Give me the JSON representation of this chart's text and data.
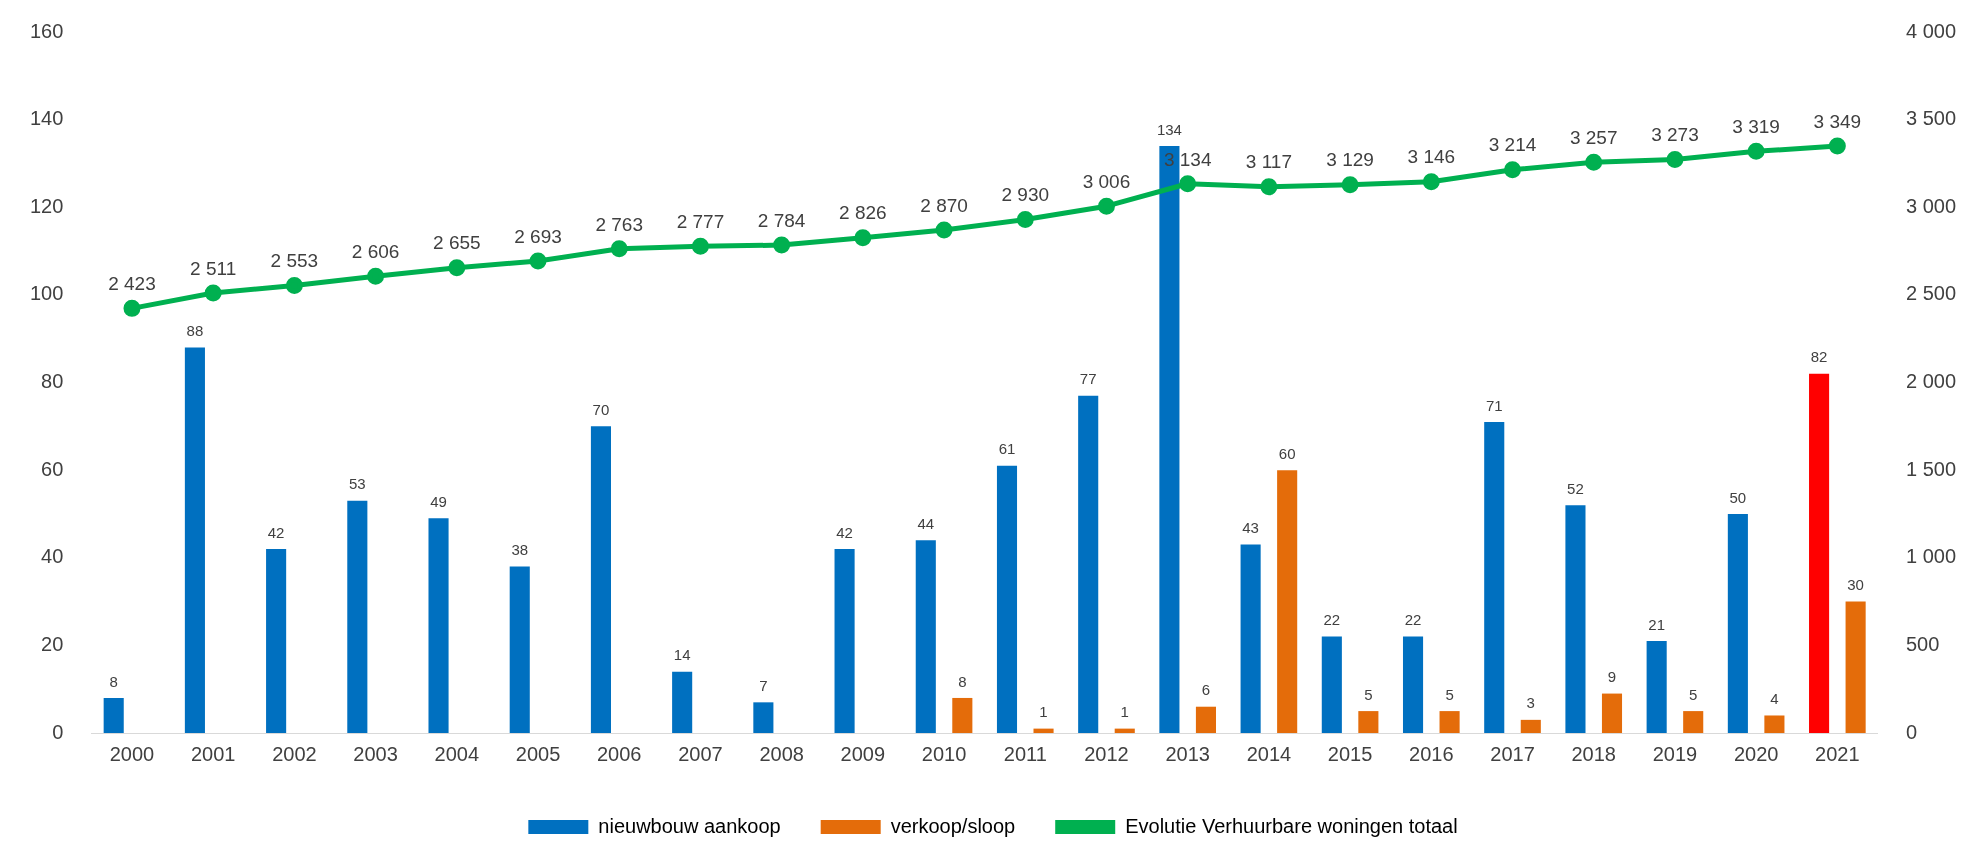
{
  "chart_data": {
    "type": "bar",
    "categories": [
      "2000",
      "2001",
      "2002",
      "2003",
      "2004",
      "2005",
      "2006",
      "2007",
      "2008",
      "2009",
      "2010",
      "2011",
      "2012",
      "2013",
      "2014",
      "2015",
      "2016",
      "2017",
      "2018",
      "2019",
      "2020",
      "2021"
    ],
    "series": [
      {
        "name": "nieuwbouw aankoop",
        "color": "#0070c0",
        "colors": [
          "#0070c0",
          "#0070c0",
          "#0070c0",
          "#0070c0",
          "#0070c0",
          "#0070c0",
          "#0070c0",
          "#0070c0",
          "#0070c0",
          "#0070c0",
          "#0070c0",
          "#0070c0",
          "#0070c0",
          "#0070c0",
          "#0070c0",
          "#0070c0",
          "#0070c0",
          "#0070c0",
          "#0070c0",
          "#0070c0",
          "#0070c0",
          "#ff0000"
        ],
        "values": [
          8,
          88,
          42,
          53,
          49,
          38,
          70,
          14,
          7,
          42,
          44,
          61,
          77,
          134,
          43,
          22,
          22,
          71,
          52,
          21,
          50,
          82
        ],
        "value_labels": [
          "8",
          "88",
          "42",
          "53",
          "49",
          "38",
          "70",
          "14",
          "7",
          "42",
          "44",
          "61",
          "77",
          "134",
          "43",
          "22",
          "22",
          "71",
          "52",
          "21",
          "50",
          "82"
        ]
      },
      {
        "name": "verkoop/sloop",
        "color": "#e46c0a",
        "values": [
          null,
          null,
          null,
          null,
          null,
          null,
          null,
          null,
          null,
          null,
          8,
          1,
          1,
          6,
          60,
          5,
          5,
          3,
          9,
          5,
          4,
          30
        ],
        "value_labels": [
          null,
          null,
          null,
          null,
          null,
          null,
          null,
          null,
          null,
          null,
          "8",
          "1",
          "1",
          "6",
          "60",
          "5",
          "5",
          "3",
          "9",
          "5",
          "4",
          "30"
        ]
      },
      {
        "name": "Evolutie Verhuurbare woningen totaal",
        "type": "line",
        "axis": "y2",
        "color": "#00b050",
        "marker": "circle",
        "values": [
          2423,
          2511,
          2553,
          2606,
          2655,
          2693,
          2763,
          2777,
          2784,
          2826,
          2870,
          2930,
          3006,
          3134,
          3117,
          3129,
          3146,
          3214,
          3257,
          3273,
          3319,
          3349
        ],
        "value_labels": [
          "2 423",
          "2 511",
          "2 553",
          "2 606",
          "2 655",
          "2 693",
          "2 763",
          "2 777",
          "2 784",
          "2 826",
          "2 870",
          "2 930",
          "3 006",
          "3 134",
          "3 117",
          "3 129",
          "3 146",
          "3 214",
          "3 257",
          "3 273",
          "3 319",
          "3 349"
        ]
      }
    ],
    "ylim": [
      0,
      160
    ],
    "yticks": [
      0,
      20,
      40,
      60,
      80,
      100,
      120,
      140,
      160
    ],
    "y2lim": [
      0,
      4000
    ],
    "y2ticks": [
      0,
      {
        "value": 500,
        "label": "500"
      },
      {
        "value": 1000,
        "label": "1 000"
      },
      {
        "value": 1500,
        "label": "1 500"
      },
      {
        "value": 2000,
        "label": "2 000"
      },
      {
        "value": 2500,
        "label": "2 500"
      },
      {
        "value": 3000,
        "label": "3 000"
      },
      {
        "value": 3500,
        "label": "3 500"
      },
      {
        "value": 4000,
        "label": "4 000"
      }
    ],
    "grid": false,
    "legend": "bottom"
  }
}
